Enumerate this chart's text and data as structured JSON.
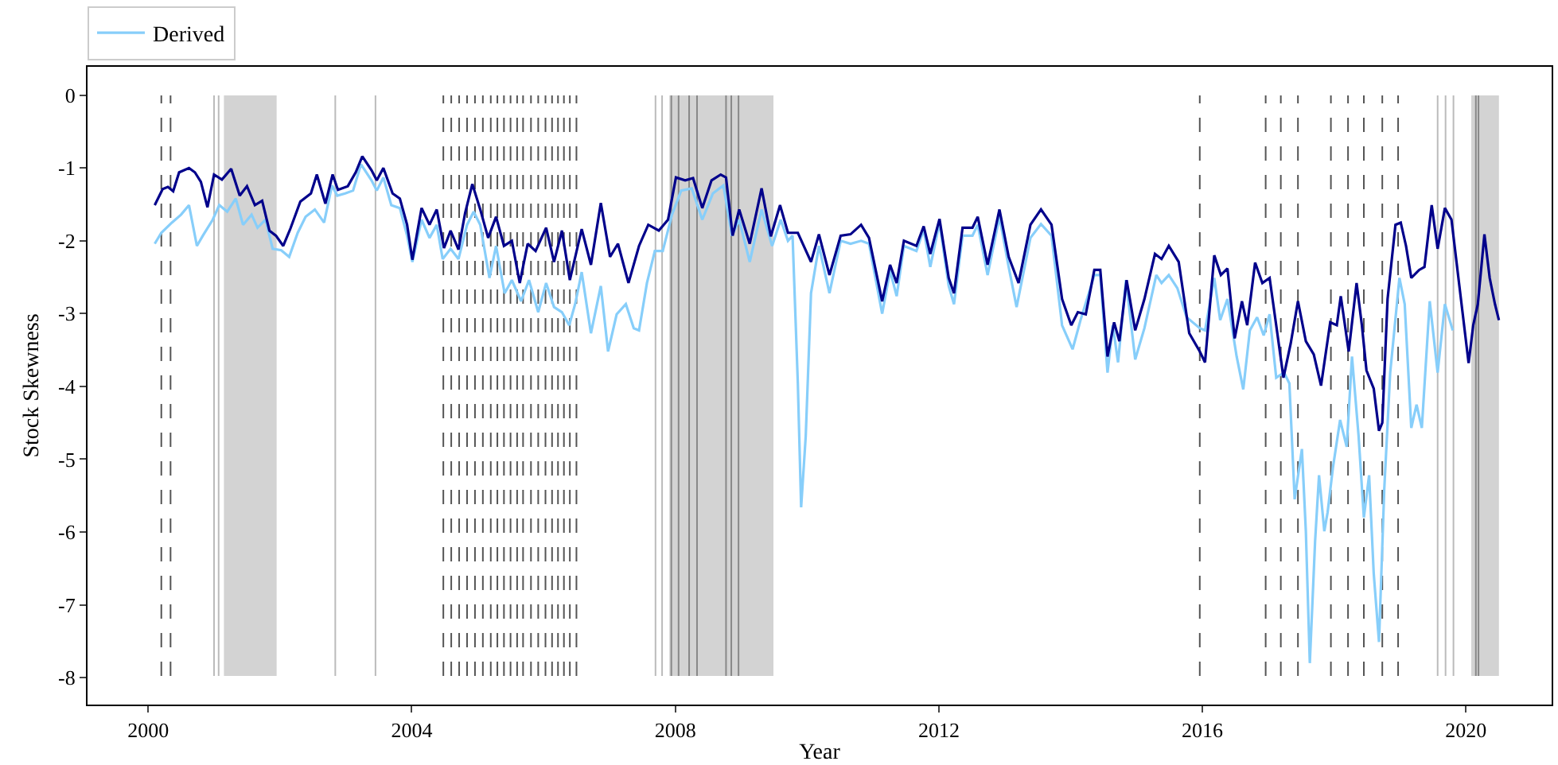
{
  "chart_data": {
    "type": "line",
    "xlabel": "Year",
    "ylabel": "Stock Skewness",
    "xlim": [
      1999.08,
      2021.3
    ],
    "xticks": [
      2000,
      2004,
      2008,
      2012,
      2016,
      2020
    ],
    "ylim": [
      -8.37,
      0.39
    ],
    "yticks": [
      0,
      -1,
      -2,
      -3,
      -4,
      -5,
      -6,
      -7,
      -8
    ],
    "grid": false,
    "legend": "top",
    "line_style": "solid",
    "marker": "none",
    "series": [
      {
        "name": "Derived",
        "color": "#87cefa",
        "x": [
          2000.1,
          2000.2,
          2000.36,
          2000.5,
          2000.62,
          2000.74,
          2000.83,
          2000.98,
          2001.08,
          2001.2,
          2001.33,
          2001.44,
          2001.57,
          2001.66,
          2001.78,
          2001.89,
          2002.02,
          2002.14,
          2002.27,
          2002.39,
          2002.53,
          2002.67,
          2002.79,
          2002.87,
          2002.99,
          2003.11,
          2003.23,
          2003.39,
          2003.47,
          2003.57,
          2003.69,
          2003.82,
          2003.93,
          2004.01,
          2004.15,
          2004.27,
          2004.38,
          2004.47,
          2004.59,
          2004.71,
          2004.84,
          2004.94,
          2005.04,
          2005.18,
          2005.28,
          2005.41,
          2005.52,
          2005.66,
          2005.78,
          2005.92,
          2006.04,
          2006.16,
          2006.28,
          2006.39,
          2006.48,
          2006.58,
          2006.72,
          2006.87,
          2006.98,
          2007.11,
          2007.25,
          2007.37,
          2007.45,
          2007.57,
          2007.69,
          2007.81,
          2007.95,
          2008.09,
          2008.25,
          2008.41,
          2008.57,
          2008.73,
          2008.86,
          2008.97,
          2009.13,
          2009.31,
          2009.47,
          2009.6,
          2009.71,
          2009.78,
          2009.86,
          2009.91,
          2009.98,
          2010.06,
          2010.18,
          2010.34,
          2010.51,
          2010.66,
          2010.82,
          2010.94,
          2011.14,
          2011.26,
          2011.36,
          2011.47,
          2011.66,
          2011.77,
          2011.87,
          2012.01,
          2012.15,
          2012.23,
          2012.36,
          2012.51,
          2012.59,
          2012.74,
          2012.92,
          2013.06,
          2013.18,
          2013.39,
          2013.55,
          2013.71,
          2013.87,
          2014.03,
          2014.15,
          2014.36,
          2014.45,
          2014.56,
          2014.64,
          2014.72,
          2014.84,
          2014.98,
          2015.12,
          2015.3,
          2015.38,
          2015.49,
          2015.62,
          2015.76,
          2015.96,
          2016.04,
          2016.18,
          2016.27,
          2016.38,
          2016.52,
          2016.62,
          2016.72,
          2016.83,
          2016.93,
          2017.02,
          2017.12,
          2017.24,
          2017.32,
          2017.4,
          2017.51,
          2017.57,
          2017.63,
          2017.71,
          2017.77,
          2017.85,
          2017.9,
          2017.98,
          2018.09,
          2018.19,
          2018.27,
          2018.37,
          2018.45,
          2018.53,
          2018.6,
          2018.68,
          2018.76,
          2018.85,
          2018.99,
          2019.07,
          2019.17,
          2019.25,
          2019.33,
          2019.45,
          2019.57,
          2019.68,
          2019.8
        ],
        "values": [
          -2.04,
          -1.89,
          -1.75,
          -1.64,
          -1.51,
          -2.07,
          -1.93,
          -1.71,
          -1.51,
          -1.6,
          -1.42,
          -1.78,
          -1.64,
          -1.82,
          -1.71,
          -2.11,
          -2.13,
          -2.22,
          -1.89,
          -1.67,
          -1.57,
          -1.75,
          -1.24,
          -1.38,
          -1.35,
          -1.31,
          -0.95,
          -1.17,
          -1.31,
          -1.13,
          -1.51,
          -1.55,
          -1.93,
          -2.29,
          -1.71,
          -1.96,
          -1.78,
          -2.25,
          -2.11,
          -2.25,
          -1.78,
          -1.6,
          -1.78,
          -2.51,
          -2.07,
          -2.72,
          -2.54,
          -2.83,
          -2.54,
          -2.98,
          -2.58,
          -2.91,
          -2.98,
          -3.16,
          -2.87,
          -2.43,
          -3.27,
          -2.62,
          -3.52,
          -3.01,
          -2.87,
          -3.2,
          -3.23,
          -2.58,
          -2.14,
          -2.14,
          -1.64,
          -1.31,
          -1.28,
          -1.71,
          -1.35,
          -1.24,
          -1.93,
          -1.71,
          -2.29,
          -1.57,
          -2.07,
          -1.71,
          -2.0,
          -1.93,
          -3.96,
          -5.66,
          -4.68,
          -2.72,
          -2.07,
          -2.72,
          -2.0,
          -2.04,
          -2.0,
          -2.04,
          -3.0,
          -2.41,
          -2.76,
          -2.07,
          -2.14,
          -1.85,
          -2.36,
          -1.75,
          -2.62,
          -2.87,
          -1.93,
          -1.93,
          -1.78,
          -2.47,
          -1.67,
          -2.36,
          -2.91,
          -1.96,
          -1.77,
          -1.93,
          -3.16,
          -3.49,
          -3.09,
          -2.47,
          -2.47,
          -3.81,
          -3.16,
          -3.67,
          -2.54,
          -3.63,
          -3.2,
          -2.47,
          -2.58,
          -2.47,
          -2.65,
          -3.05,
          -3.2,
          -3.23,
          -2.51,
          -3.09,
          -2.8,
          -3.59,
          -4.04,
          -3.23,
          -3.05,
          -3.3,
          -3.01,
          -3.88,
          -3.81,
          -3.96,
          -5.55,
          -4.86,
          -5.99,
          -7.8,
          -6.13,
          -5.22,
          -5.99,
          -5.73,
          -5.12,
          -4.46,
          -4.83,
          -3.59,
          -4.68,
          -5.8,
          -5.22,
          -6.57,
          -7.51,
          -5.41,
          -3.81,
          -2.51,
          -2.87,
          -4.57,
          -4.25,
          -4.57,
          -2.83,
          -3.81,
          -2.87,
          -3.23
        ]
      },
      {
        "color": "#00008b",
        "x": [
          2000.1,
          2000.22,
          2000.3,
          2000.38,
          2000.47,
          2000.62,
          2000.71,
          2000.8,
          2000.9,
          2001.0,
          2001.12,
          2001.26,
          2001.39,
          2001.5,
          2001.62,
          2001.73,
          2001.84,
          2001.94,
          2002.05,
          2002.16,
          2002.31,
          2002.47,
          2002.56,
          2002.69,
          2002.8,
          2002.88,
          2003.03,
          2003.15,
          2003.25,
          2003.39,
          2003.47,
          2003.57,
          2003.71,
          2003.82,
          2003.93,
          2004.01,
          2004.15,
          2004.27,
          2004.38,
          2004.49,
          2004.59,
          2004.71,
          2004.81,
          2004.92,
          2005.04,
          2005.16,
          2005.28,
          2005.4,
          2005.52,
          2005.64,
          2005.76,
          2005.88,
          2006.04,
          2006.16,
          2006.28,
          2006.4,
          2006.58,
          2006.72,
          2006.87,
          2007.01,
          2007.13,
          2007.29,
          2007.45,
          2007.59,
          2007.75,
          2007.89,
          2008.01,
          2008.15,
          2008.27,
          2008.41,
          2008.55,
          2008.69,
          2008.77,
          2008.87,
          2008.97,
          2009.13,
          2009.31,
          2009.45,
          2009.59,
          2009.71,
          2009.86,
          2010.06,
          2010.18,
          2010.34,
          2010.51,
          2010.66,
          2010.82,
          2010.94,
          2011.14,
          2011.26,
          2011.36,
          2011.47,
          2011.66,
          2011.77,
          2011.87,
          2012.01,
          2012.15,
          2012.23,
          2012.36,
          2012.51,
          2012.59,
          2012.74,
          2012.92,
          2013.06,
          2013.21,
          2013.39,
          2013.55,
          2013.71,
          2013.87,
          2014.01,
          2014.11,
          2014.23,
          2014.36,
          2014.45,
          2014.56,
          2014.66,
          2014.74,
          2014.85,
          2014.98,
          2015.12,
          2015.28,
          2015.38,
          2015.49,
          2015.64,
          2015.8,
          2015.96,
          2016.04,
          2016.18,
          2016.28,
          2016.38,
          2016.49,
          2016.6,
          2016.68,
          2016.8,
          2016.91,
          2017.02,
          2017.12,
          2017.23,
          2017.34,
          2017.45,
          2017.57,
          2017.69,
          2017.8,
          2017.94,
          2018.04,
          2018.1,
          2018.22,
          2018.34,
          2018.42,
          2018.49,
          2018.6,
          2018.68,
          2018.73,
          2018.81,
          2018.93,
          2019.01,
          2019.09,
          2019.17,
          2019.29,
          2019.37,
          2019.48,
          2019.57,
          2019.68,
          2019.78,
          2019.9,
          2020.04,
          2020.11,
          2020.18,
          2020.28,
          2020.36,
          2020.44,
          2020.5
        ],
        "values": [
          -1.51,
          -1.29,
          -1.26,
          -1.32,
          -1.06,
          -1.0,
          -1.06,
          -1.19,
          -1.54,
          -1.09,
          -1.16,
          -1.01,
          -1.38,
          -1.25,
          -1.51,
          -1.45,
          -1.86,
          -1.93,
          -2.07,
          -1.83,
          -1.46,
          -1.35,
          -1.09,
          -1.49,
          -1.09,
          -1.3,
          -1.25,
          -1.06,
          -0.84,
          -1.03,
          -1.17,
          -1.0,
          -1.35,
          -1.42,
          -1.78,
          -2.26,
          -1.55,
          -1.78,
          -1.57,
          -2.1,
          -1.86,
          -2.12,
          -1.62,
          -1.22,
          -1.57,
          -1.96,
          -1.67,
          -2.07,
          -2.0,
          -2.58,
          -2.04,
          -2.14,
          -1.82,
          -2.29,
          -1.86,
          -2.54,
          -1.84,
          -2.33,
          -1.48,
          -2.22,
          -2.04,
          -2.58,
          -2.07,
          -1.78,
          -1.86,
          -1.71,
          -1.13,
          -1.17,
          -1.14,
          -1.55,
          -1.17,
          -1.09,
          -1.13,
          -1.93,
          -1.57,
          -2.04,
          -1.28,
          -1.94,
          -1.51,
          -1.89,
          -1.89,
          -2.29,
          -1.91,
          -2.47,
          -1.93,
          -1.91,
          -1.78,
          -1.96,
          -2.83,
          -2.33,
          -2.58,
          -2.0,
          -2.07,
          -1.8,
          -2.18,
          -1.7,
          -2.51,
          -2.72,
          -1.82,
          -1.82,
          -1.67,
          -2.33,
          -1.57,
          -2.22,
          -2.58,
          -1.78,
          -1.57,
          -1.78,
          -2.8,
          -3.16,
          -2.98,
          -3.01,
          -2.4,
          -2.4,
          -3.59,
          -3.12,
          -3.38,
          -2.54,
          -3.23,
          -2.8,
          -2.18,
          -2.25,
          -2.07,
          -2.29,
          -3.27,
          -3.52,
          -3.67,
          -2.2,
          -2.47,
          -2.38,
          -3.34,
          -2.83,
          -3.16,
          -2.3,
          -2.58,
          -2.51,
          -3.16,
          -3.88,
          -3.41,
          -2.83,
          -3.38,
          -3.56,
          -3.99,
          -3.12,
          -3.16,
          -2.76,
          -3.52,
          -2.58,
          -3.16,
          -3.78,
          -4.03,
          -4.61,
          -4.5,
          -2.8,
          -1.78,
          -1.75,
          -2.07,
          -2.51,
          -2.4,
          -2.36,
          -1.51,
          -2.11,
          -1.55,
          -1.71,
          -2.62,
          -3.68,
          -3.16,
          -2.87,
          -1.91,
          -2.51,
          -2.87,
          -3.09
        ]
      }
    ],
    "bands": [
      {
        "axis": "x",
        "from": 2001.15,
        "to": 2001.95,
        "color": "#d3d3d3"
      },
      {
        "axis": "x",
        "from": 2007.91,
        "to": 2009.49,
        "color": "#d3d3d3"
      },
      {
        "axis": "x",
        "from": 2020.08,
        "to": 2020.5,
        "color": "#d3d3d3"
      }
    ],
    "ref_lines": [
      {
        "axis": "x",
        "value": 2000.2,
        "line_style": "dashed",
        "color": "#555555"
      },
      {
        "axis": "x",
        "value": 2000.34,
        "line_style": "dashed",
        "color": "#555555"
      },
      {
        "axis": "x",
        "value": 2004.48,
        "line_style": "dashed",
        "color": "#555555"
      },
      {
        "axis": "x",
        "value": 2004.6,
        "line_style": "dashed",
        "color": "#555555"
      },
      {
        "axis": "x",
        "value": 2004.72,
        "line_style": "dashed",
        "color": "#555555"
      },
      {
        "axis": "x",
        "value": 2004.84,
        "line_style": "dashed",
        "color": "#555555"
      },
      {
        "axis": "x",
        "value": 2004.96,
        "line_style": "dashed",
        "color": "#555555"
      },
      {
        "axis": "x",
        "value": 2005.08,
        "line_style": "dashed",
        "color": "#555555"
      },
      {
        "axis": "x",
        "value": 2005.2,
        "line_style": "dashed",
        "color": "#555555"
      },
      {
        "axis": "x",
        "value": 2005.3,
        "line_style": "dashed",
        "color": "#555555"
      },
      {
        "axis": "x",
        "value": 2005.4,
        "line_style": "dashed",
        "color": "#555555"
      },
      {
        "axis": "x",
        "value": 2005.5,
        "line_style": "dashed",
        "color": "#555555"
      },
      {
        "axis": "x",
        "value": 2005.6,
        "line_style": "dashed",
        "color": "#555555"
      },
      {
        "axis": "x",
        "value": 2005.69,
        "line_style": "dashed",
        "color": "#555555"
      },
      {
        "axis": "x",
        "value": 2005.81,
        "line_style": "dashed",
        "color": "#555555"
      },
      {
        "axis": "x",
        "value": 2005.92,
        "line_style": "dashed",
        "color": "#555555"
      },
      {
        "axis": "x",
        "value": 2006.03,
        "line_style": "dashed",
        "color": "#555555"
      },
      {
        "axis": "x",
        "value": 2006.13,
        "line_style": "dashed",
        "color": "#555555"
      },
      {
        "axis": "x",
        "value": 2006.22,
        "line_style": "dashed",
        "color": "#555555"
      },
      {
        "axis": "x",
        "value": 2006.31,
        "line_style": "dashed",
        "color": "#555555"
      },
      {
        "axis": "x",
        "value": 2006.4,
        "line_style": "dashed",
        "color": "#555555"
      },
      {
        "axis": "x",
        "value": 2006.5,
        "line_style": "dashed",
        "color": "#555555"
      },
      {
        "axis": "x",
        "value": 2015.96,
        "line_style": "dashed",
        "color": "#555555"
      },
      {
        "axis": "x",
        "value": 2016.96,
        "line_style": "dashed",
        "color": "#555555"
      },
      {
        "axis": "x",
        "value": 2017.19,
        "line_style": "dashed",
        "color": "#555555"
      },
      {
        "axis": "x",
        "value": 2017.45,
        "line_style": "dashed",
        "color": "#555555"
      },
      {
        "axis": "x",
        "value": 2017.95,
        "line_style": "dashed",
        "color": "#555555"
      },
      {
        "axis": "x",
        "value": 2018.21,
        "line_style": "dashed",
        "color": "#555555"
      },
      {
        "axis": "x",
        "value": 2018.45,
        "line_style": "dashed",
        "color": "#555555"
      },
      {
        "axis": "x",
        "value": 2018.73,
        "line_style": "dashed",
        "color": "#555555"
      },
      {
        "axis": "x",
        "value": 2018.97,
        "line_style": "dashed",
        "color": "#555555"
      },
      {
        "axis": "x",
        "value": 2001.0,
        "line_style": "solid",
        "color": "#bbbbbb"
      },
      {
        "axis": "x",
        "value": 2001.07,
        "line_style": "solid",
        "color": "#bbbbbb"
      },
      {
        "axis": "x",
        "value": 2002.84,
        "line_style": "solid",
        "color": "#bbbbbb"
      },
      {
        "axis": "x",
        "value": 2003.45,
        "line_style": "solid",
        "color": "#bbbbbb"
      },
      {
        "axis": "x",
        "value": 2007.7,
        "line_style": "solid",
        "color": "#bbbbbb"
      },
      {
        "axis": "x",
        "value": 2007.8,
        "line_style": "solid",
        "color": "#bbbbbb"
      },
      {
        "axis": "x",
        "value": 2007.94,
        "line_style": "solid",
        "color": "#888888"
      },
      {
        "axis": "x",
        "value": 2008.05,
        "line_style": "solid",
        "color": "#888888"
      },
      {
        "axis": "x",
        "value": 2008.21,
        "line_style": "solid",
        "color": "#888888"
      },
      {
        "axis": "x",
        "value": 2008.33,
        "line_style": "solid",
        "color": "#888888"
      },
      {
        "axis": "x",
        "value": 2008.77,
        "line_style": "solid",
        "color": "#888888"
      },
      {
        "axis": "x",
        "value": 2008.85,
        "line_style": "solid",
        "color": "#888888"
      },
      {
        "axis": "x",
        "value": 2008.96,
        "line_style": "solid",
        "color": "#888888"
      },
      {
        "axis": "x",
        "value": 2019.57,
        "line_style": "solid",
        "color": "#bbbbbb"
      },
      {
        "axis": "x",
        "value": 2019.69,
        "line_style": "solid",
        "color": "#bbbbbb"
      },
      {
        "axis": "x",
        "value": 2019.81,
        "line_style": "solid",
        "color": "#bbbbbb"
      },
      {
        "axis": "x",
        "value": 2020.15,
        "line_style": "solid",
        "color": "#888888"
      },
      {
        "axis": "x",
        "value": 2020.19,
        "line_style": "solid",
        "color": "#888888"
      }
    ]
  }
}
